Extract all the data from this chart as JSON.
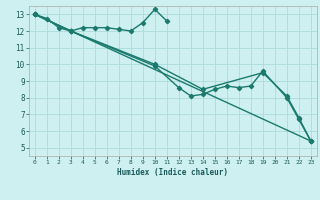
{
  "xlabel": "Humidex (Indice chaleur)",
  "bg_color": "#cff0f0",
  "grid_color": "#aadada",
  "line_color": "#1a7a6e",
  "marker": "D",
  "markersize": 2.2,
  "linewidth": 1.0,
  "xlim": [
    -0.5,
    23.5
  ],
  "ylim": [
    4.5,
    13.5
  ],
  "xticks": [
    0,
    1,
    2,
    3,
    4,
    5,
    6,
    7,
    8,
    9,
    10,
    11,
    12,
    13,
    14,
    15,
    16,
    17,
    18,
    19,
    20,
    21,
    22,
    23
  ],
  "yticks": [
    5,
    6,
    7,
    8,
    9,
    10,
    11,
    12,
    13
  ],
  "lines": [
    {
      "x": [
        0,
        1,
        2,
        3,
        4,
        5,
        6,
        7,
        8,
        9,
        10,
        11
      ],
      "y": [
        13.0,
        12.75,
        12.2,
        12.0,
        12.2,
        12.2,
        12.2,
        12.1,
        12.0,
        12.5,
        13.3,
        12.6
      ]
    },
    {
      "x": [
        0,
        3,
        10,
        12,
        13,
        14,
        15,
        16,
        17,
        18,
        19,
        21,
        22,
        23
      ],
      "y": [
        13.0,
        12.0,
        9.9,
        8.6,
        8.1,
        8.2,
        8.5,
        8.7,
        8.6,
        8.7,
        9.6,
        8.0,
        6.7,
        5.4
      ]
    },
    {
      "x": [
        0,
        3,
        10,
        14,
        19,
        21,
        22,
        23
      ],
      "y": [
        13.0,
        12.0,
        10.0,
        8.5,
        9.5,
        8.1,
        6.8,
        5.4
      ]
    },
    {
      "x": [
        0,
        3,
        23
      ],
      "y": [
        13.0,
        12.0,
        5.4
      ]
    }
  ]
}
